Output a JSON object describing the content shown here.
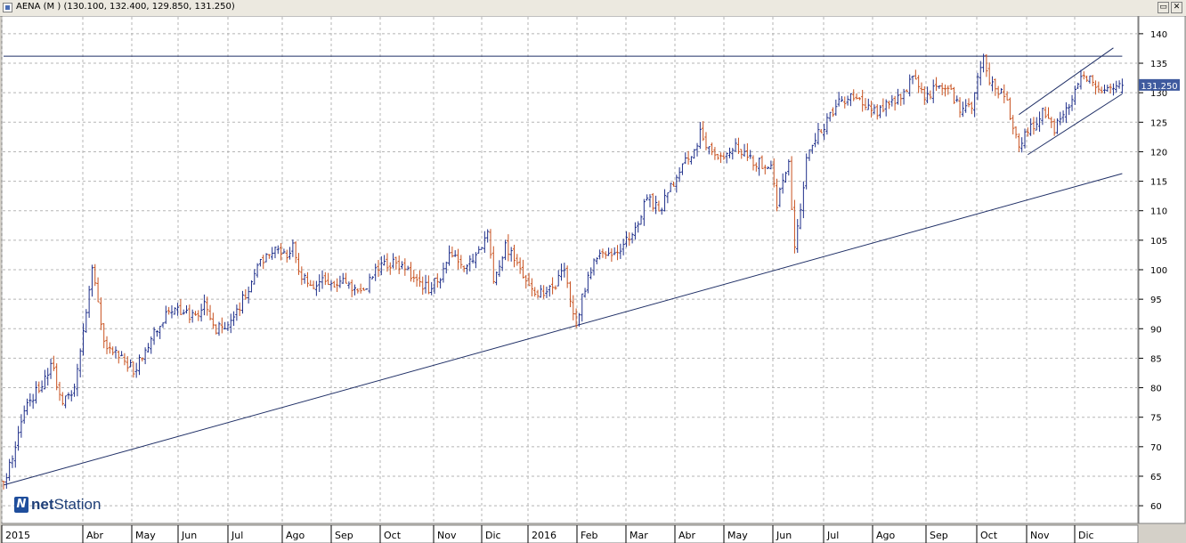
{
  "window": {
    "title": "AENA (M ) (130.100, 132.400, 129.850, 131.250)",
    "restore_glyph": "▭",
    "close_glyph": "✕"
  },
  "logo": {
    "bold": "net",
    "rest": "Station"
  },
  "colors": {
    "up": "#1f2f8a",
    "down": "#c8511f",
    "grid": "#b5b5b5",
    "trend": "#1f2f66",
    "badge": "#3f5a9e"
  },
  "chart_data": {
    "type": "ohlc",
    "title": "AENA (M )",
    "last_ohlc": {
      "open": 130.1,
      "high": 132.4,
      "low": 129.85,
      "close": 131.25
    },
    "price_label": "131.250",
    "y_ticks": [
      "140",
      "135",
      "130",
      "125",
      "120",
      "115",
      "110",
      "105",
      "100",
      "95",
      "90",
      "85",
      "80",
      "75",
      "70",
      "65",
      "60"
    ],
    "ylim": [
      57,
      143
    ],
    "month_labels": [
      "2015",
      "Abr",
      "May",
      "Jun",
      "Jul",
      "Ago",
      "Sep",
      "Oct",
      "Nov",
      "Dic",
      "2016",
      "Feb",
      "Mar",
      "Abr",
      "May",
      "Jun",
      "Jul",
      "Ago",
      "Sep",
      "Oct",
      "Nov",
      "Dic"
    ],
    "anchors": [
      [
        0,
        64
      ],
      [
        4,
        70
      ],
      [
        8,
        77
      ],
      [
        12,
        80
      ],
      [
        16,
        84
      ],
      [
        20,
        78
      ],
      [
        24,
        80
      ],
      [
        28,
        92
      ],
      [
        30,
        100
      ],
      [
        34,
        88
      ],
      [
        38,
        86
      ],
      [
        42,
        84
      ],
      [
        44,
        83
      ],
      [
        48,
        86
      ],
      [
        52,
        90
      ],
      [
        56,
        93
      ],
      [
        60,
        93
      ],
      [
        64,
        92
      ],
      [
        68,
        94
      ],
      [
        72,
        90
      ],
      [
        76,
        91
      ],
      [
        80,
        94
      ],
      [
        84,
        98
      ],
      [
        88,
        102
      ],
      [
        92,
        104
      ],
      [
        96,
        102
      ],
      [
        98,
        104
      ],
      [
        100,
        100
      ],
      [
        104,
        97
      ],
      [
        108,
        98
      ],
      [
        112,
        97
      ],
      [
        116,
        98
      ],
      [
        120,
        96
      ],
      [
        124,
        98
      ],
      [
        128,
        101
      ],
      [
        132,
        101
      ],
      [
        136,
        100
      ],
      [
        140,
        98
      ],
      [
        144,
        97
      ],
      [
        148,
        99
      ],
      [
        152,
        103
      ],
      [
        156,
        101
      ],
      [
        160,
        102
      ],
      [
        164,
        107
      ],
      [
        166,
        98
      ],
      [
        170,
        104
      ],
      [
        174,
        102
      ],
      [
        178,
        97
      ],
      [
        182,
        96
      ],
      [
        186,
        97
      ],
      [
        190,
        100
      ],
      [
        192,
        95
      ],
      [
        194,
        91
      ],
      [
        198,
        99
      ],
      [
        202,
        103
      ],
      [
        206,
        102
      ],
      [
        210,
        104
      ],
      [
        214,
        107
      ],
      [
        218,
        112
      ],
      [
        222,
        110
      ],
      [
        226,
        114
      ],
      [
        230,
        118
      ],
      [
        234,
        120
      ],
      [
        236,
        123
      ],
      [
        240,
        120
      ],
      [
        244,
        119
      ],
      [
        248,
        121
      ],
      [
        252,
        119
      ],
      [
        256,
        118
      ],
      [
        260,
        117
      ],
      [
        262,
        111
      ],
      [
        266,
        118
      ],
      [
        268,
        104
      ],
      [
        270,
        110
      ],
      [
        272,
        119
      ],
      [
        276,
        123
      ],
      [
        280,
        126
      ],
      [
        284,
        129
      ],
      [
        288,
        129
      ],
      [
        292,
        128
      ],
      [
        296,
        127
      ],
      [
        300,
        128
      ],
      [
        304,
        129
      ],
      [
        308,
        133
      ],
      [
        312,
        129
      ],
      [
        316,
        131
      ],
      [
        320,
        131
      ],
      [
        324,
        127
      ],
      [
        328,
        128
      ],
      [
        330,
        132
      ],
      [
        332,
        136
      ],
      [
        334,
        132
      ],
      [
        338,
        130
      ],
      [
        340,
        128
      ],
      [
        342,
        124
      ],
      [
        344,
        121
      ],
      [
        348,
        124
      ],
      [
        352,
        127
      ],
      [
        356,
        124
      ],
      [
        360,
        127
      ],
      [
        364,
        132
      ],
      [
        368,
        132
      ],
      [
        372,
        130
      ],
      [
        376,
        131
      ]
    ],
    "trendlines": [
      {
        "name": "support",
        "from": [
          0,
          63.5
        ],
        "to": [
          379,
          116.3
        ]
      },
      {
        "name": "resistance",
        "from": [
          0,
          136.2
        ],
        "to": [
          379,
          136.2
        ]
      },
      {
        "name": "channel-upper",
        "from": [
          344,
          126.3
        ],
        "to": [
          376,
          137.6
        ]
      },
      {
        "name": "channel-lower",
        "from": [
          347,
          119.5
        ],
        "to": [
          379,
          129.8
        ]
      }
    ]
  }
}
